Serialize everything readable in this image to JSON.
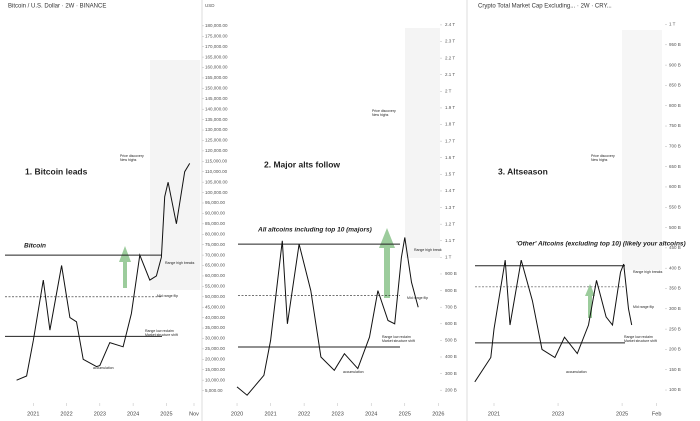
{
  "chart_data": [
    {
      "type": "line",
      "title": "Bitcoin / U.S. Dollar · 2W · BINANCE",
      "unit": "USD",
      "x": [
        2020.5,
        2020.8,
        2021.0,
        2021.3,
        2021.5,
        2021.85,
        2022.1,
        2022.3,
        2022.5,
        2022.9,
        2023.0,
        2023.3,
        2023.7,
        2023.95,
        2024.2,
        2024.5,
        2024.7,
        2024.85,
        2024.95,
        2025.05,
        2025.3,
        2025.55,
        2025.7
      ],
      "series": [
        {
          "name": "Bitcoin",
          "color": "#111111",
          "values": [
            10000,
            12000,
            29000,
            58000,
            34000,
            65000,
            40000,
            38000,
            20000,
            16500,
            17000,
            28000,
            26000,
            42000,
            70000,
            58000,
            60000,
            69000,
            98000,
            105000,
            85000,
            110000,
            114000
          ]
        }
      ],
      "levels": [
        70000,
        50000,
        31000
      ],
      "xlim": [
        2020.0,
        2026.07
      ],
      "ylim": [
        0,
        190000
      ],
      "xticks": [
        2021,
        2022,
        2023,
        2024,
        2025,
        {
          "value": 2025.83,
          "label": "Nov"
        }
      ],
      "yticks": [
        {
          "value": 5000,
          "label": "5,000.00"
        },
        {
          "value": 10000,
          "label": "10,000.00"
        },
        {
          "value": 15000,
          "label": "15,000.00"
        },
        {
          "value": 20000,
          "label": "20,000.00"
        },
        {
          "value": 25000,
          "label": "25,000.00"
        },
        {
          "value": 30000,
          "label": "30,000.00"
        },
        {
          "value": 35000,
          "label": "35,000.00"
        },
        {
          "value": 40000,
          "label": "40,000.00"
        },
        {
          "value": 45000,
          "label": "45,000.00"
        },
        {
          "value": 50000,
          "label": "50,000.00"
        },
        {
          "value": 55000,
          "label": "55,000.00"
        },
        {
          "value": 60000,
          "label": "60,000.00"
        },
        {
          "value": 65000,
          "label": "65,000.00"
        },
        {
          "value": 70000,
          "label": "70,000.00"
        },
        {
          "value": 75000,
          "label": "75,000.00"
        },
        {
          "value": 80000,
          "label": "80,000.00"
        },
        {
          "value": 85000,
          "label": "85,000.00"
        },
        {
          "value": 90000,
          "label": "90,000.00"
        },
        {
          "value": 95000,
          "label": "95,000.00"
        },
        {
          "value": 100000,
          "label": "100,000.00"
        },
        {
          "value": 105000,
          "label": "105,000.00"
        },
        {
          "value": 110000,
          "label": "110,000.00"
        },
        {
          "value": 115000,
          "label": "115,000.00"
        },
        {
          "value": 120000,
          "label": "120,000.00"
        },
        {
          "value": 125000,
          "label": "125,000.00"
        },
        {
          "value": 130000,
          "label": "130,000.00"
        },
        {
          "value": 135000,
          "label": "135,000.00"
        },
        {
          "value": 140000,
          "label": "140,000.00"
        },
        {
          "value": 145000,
          "label": "145,000.00"
        },
        {
          "value": 150000,
          "label": "150,000.00"
        },
        {
          "value": 155000,
          "label": "155,000.00"
        },
        {
          "value": 160000,
          "label": "160,000.00"
        },
        {
          "value": 165000,
          "label": "165,000.00"
        },
        {
          "value": 170000,
          "label": "170,000.00"
        },
        {
          "value": 175000,
          "label": "175,000.00"
        },
        {
          "value": 180000,
          "label": "180,000.00"
        }
      ],
      "annotations": [
        "1. Bitcoin leads",
        "Bitcoin",
        "Price discovery",
        "New highs",
        "Range high breaks",
        "Mid range flip",
        "Range low reclaim",
        "Market structure shift",
        "accumulation"
      ]
    },
    {
      "type": "line",
      "title": "",
      "unit": "",
      "x": [
        2020.0,
        2020.3,
        2020.8,
        2021.0,
        2021.35,
        2021.5,
        2021.85,
        2022.2,
        2022.5,
        2022.9,
        2023.2,
        2023.6,
        2023.95,
        2024.2,
        2024.5,
        2024.7,
        2024.9,
        2025.0,
        2025.2,
        2025.4
      ],
      "series": [
        {
          "name": "All altcoins",
          "color": "#111111",
          "values": [
            220,
            170,
            290,
            500,
            1100,
            600,
            1080,
            800,
            400,
            320,
            420,
            330,
            520,
            800,
            620,
            600,
            1000,
            1120,
            850,
            700
          ]
        }
      ],
      "levels": [
        1080,
        770,
        460
      ],
      "xlim": [
        2019.88,
        2026.05
      ],
      "ylim": [
        135,
        2520
      ],
      "xticks": [
        2020,
        2021,
        2022,
        2023,
        2024,
        2025,
        2026
      ],
      "yticks": [
        {
          "value": 200,
          "label": "200 B"
        },
        {
          "value": 300,
          "label": "300 B"
        },
        {
          "value": 400,
          "label": "400 B"
        },
        {
          "value": 500,
          "label": "500 B"
        },
        {
          "value": 600,
          "label": "600 B"
        },
        {
          "value": 700,
          "label": "700 B"
        },
        {
          "value": 800,
          "label": "800 B"
        },
        {
          "value": 900,
          "label": "900 B"
        },
        {
          "value": 1000,
          "label": "1 T"
        },
        {
          "value": 1100,
          "label": "1.1 T"
        },
        {
          "value": 1200,
          "label": "1.2 T"
        },
        {
          "value": 1300,
          "label": "1.3 T"
        },
        {
          "value": 1400,
          "label": "1.4 T"
        },
        {
          "value": 1500,
          "label": "1.5 T"
        },
        {
          "value": 1600,
          "label": "1.6 T"
        },
        {
          "value": 1700,
          "label": "1.7 T"
        },
        {
          "value": 1800,
          "label": "1.8 T"
        },
        {
          "value": 1900,
          "label": "1.9 T"
        },
        {
          "value": 2000,
          "label": "2 T"
        },
        {
          "value": 2100,
          "label": "2.1 T"
        },
        {
          "value": 2200,
          "label": "2.2 T"
        },
        {
          "value": 2300,
          "label": "2.3 T"
        },
        {
          "value": 2400,
          "label": "2.4 T"
        }
      ],
      "annotations": [
        "2. Major alts follow",
        "All altcoins including top 10 (majors)",
        "Price discovery",
        "New highs",
        "Range high break",
        "Mid range flip",
        "Range low reclaim",
        "Market structure shift",
        "accumulation"
      ]
    },
    {
      "type": "line",
      "title": "Crypto Total Market Cap Excluding... · 2W · CRY...",
      "unit": "",
      "x": [
        2020.4,
        2020.9,
        2021.0,
        2021.35,
        2021.5,
        2021.85,
        2022.2,
        2022.5,
        2022.9,
        2023.2,
        2023.6,
        2023.95,
        2024.2,
        2024.5,
        2024.7,
        2024.95,
        2025.05,
        2025.2,
        2025.3
      ],
      "series": [
        {
          "name": "Other altcoins",
          "color": "#111111",
          "values": [
            120,
            180,
            250,
            420,
            260,
            420,
            320,
            200,
            180,
            230,
            190,
            260,
            370,
            280,
            260,
            390,
            410,
            300,
            260
          ]
        }
      ],
      "levels": [
        406,
        354,
        216
      ],
      "xlim": [
        2020.25,
        2026.34
      ],
      "ylim": [
        73,
        1048
      ],
      "xticks": [
        2021,
        2023,
        2025,
        {
          "value": 2026.08,
          "label": "Feb"
        }
      ],
      "yticks": [
        {
          "value": 100,
          "label": "100 B"
        },
        {
          "value": 150,
          "label": "150 B"
        },
        {
          "value": 200,
          "label": "200 B"
        },
        {
          "value": 250,
          "label": "250 B"
        },
        {
          "value": 300,
          "label": "300 B"
        },
        {
          "value": 350,
          "label": "350 B"
        },
        {
          "value": 400,
          "label": "400 B"
        },
        {
          "value": 450,
          "label": "450 B"
        },
        {
          "value": 500,
          "label": "500 B"
        },
        {
          "value": 550,
          "label": "550 B"
        },
        {
          "value": 600,
          "label": "600 B"
        },
        {
          "value": 650,
          "label": "650 B"
        },
        {
          "value": 700,
          "label": "700 B"
        },
        {
          "value": 750,
          "label": "750 B"
        },
        {
          "value": 800,
          "label": "800 B"
        },
        {
          "value": 850,
          "label": "850 B"
        },
        {
          "value": 900,
          "label": "900 B"
        },
        {
          "value": 950,
          "label": "950 B"
        },
        {
          "value": 1000,
          "label": "1 T"
        }
      ],
      "annotations": [
        "3. Altseason",
        "'Other' Altcoins (excluding top 10) (likely your altcoins)",
        "Price discovery",
        "New highs",
        "Range high breaks",
        "Mid range flip",
        "Range low reclaim",
        "Market structure shift",
        "accumulation"
      ]
    }
  ]
}
